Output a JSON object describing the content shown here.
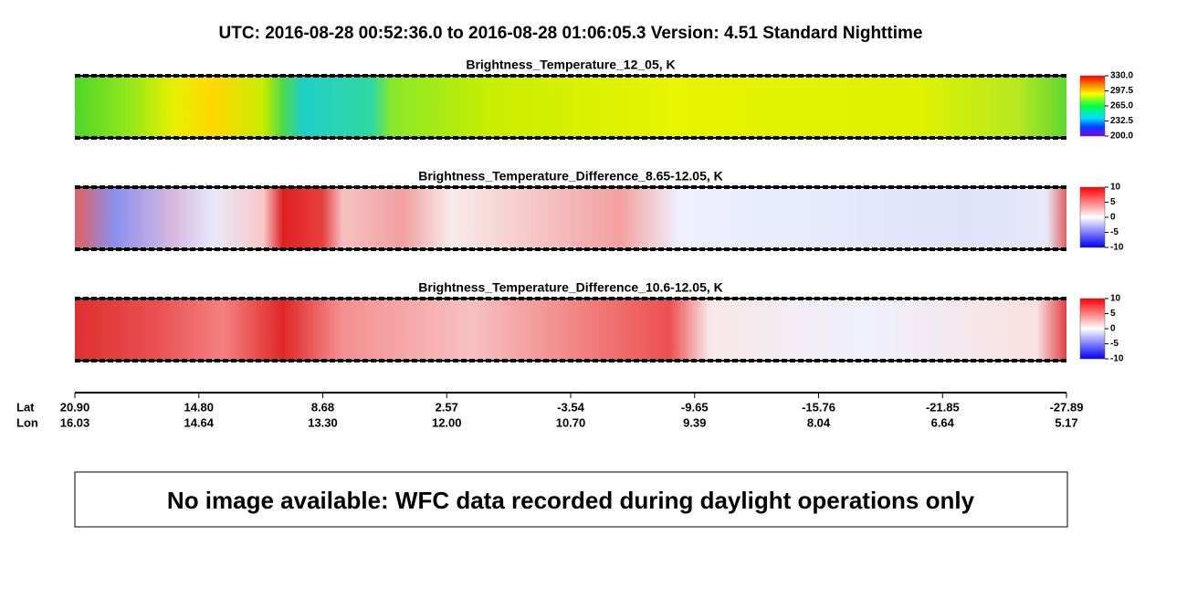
{
  "title": "UTC:  2016-08-28   00:52:36.0  to  2016-08-28   01:06:05.3    Version: 4.51  Standard Nighttime",
  "panels": [
    {
      "title": "Brightness_Temperature_12_05, K",
      "colorbar": "rainbow",
      "ticks": [
        {
          "value": 330,
          "label": "330.0"
        },
        {
          "value": 297.5,
          "label": "297.5"
        },
        {
          "value": 265,
          "label": "265.0"
        },
        {
          "value": 232.5,
          "label": "232.5"
        },
        {
          "value": 200,
          "label": "200.0"
        }
      ]
    },
    {
      "title": "Brightness_Temperature_Difference_8.65-12.05, K",
      "colorbar": "diverging",
      "ticks": [
        10,
        5,
        0,
        -5,
        -10
      ]
    },
    {
      "title": "Brightness_Temperature_Difference_10.6-12.05, K",
      "colorbar": "diverging",
      "ticks": [
        10,
        5,
        0,
        -5,
        -10
      ]
    }
  ],
  "axis": {
    "row_labels": [
      "Lat",
      "Lon"
    ],
    "ticks": [
      {
        "lat": "20.90",
        "lon": "16.03"
      },
      {
        "lat": "14.80",
        "lon": "14.64"
      },
      {
        "lat": "8.68",
        "lon": "13.30"
      },
      {
        "lat": "2.57",
        "lon": "12.00"
      },
      {
        "lat": "-3.54",
        "lon": "10.70"
      },
      {
        "lat": "-9.65",
        "lon": "9.39"
      },
      {
        "lat": "-15.76",
        "lon": "8.04"
      },
      {
        "lat": "-21.85",
        "lon": "6.64"
      },
      {
        "lat": "-27.89",
        "lon": "5.17"
      }
    ]
  },
  "notice": "No image available: WFC data recorded during daylight operations only"
}
